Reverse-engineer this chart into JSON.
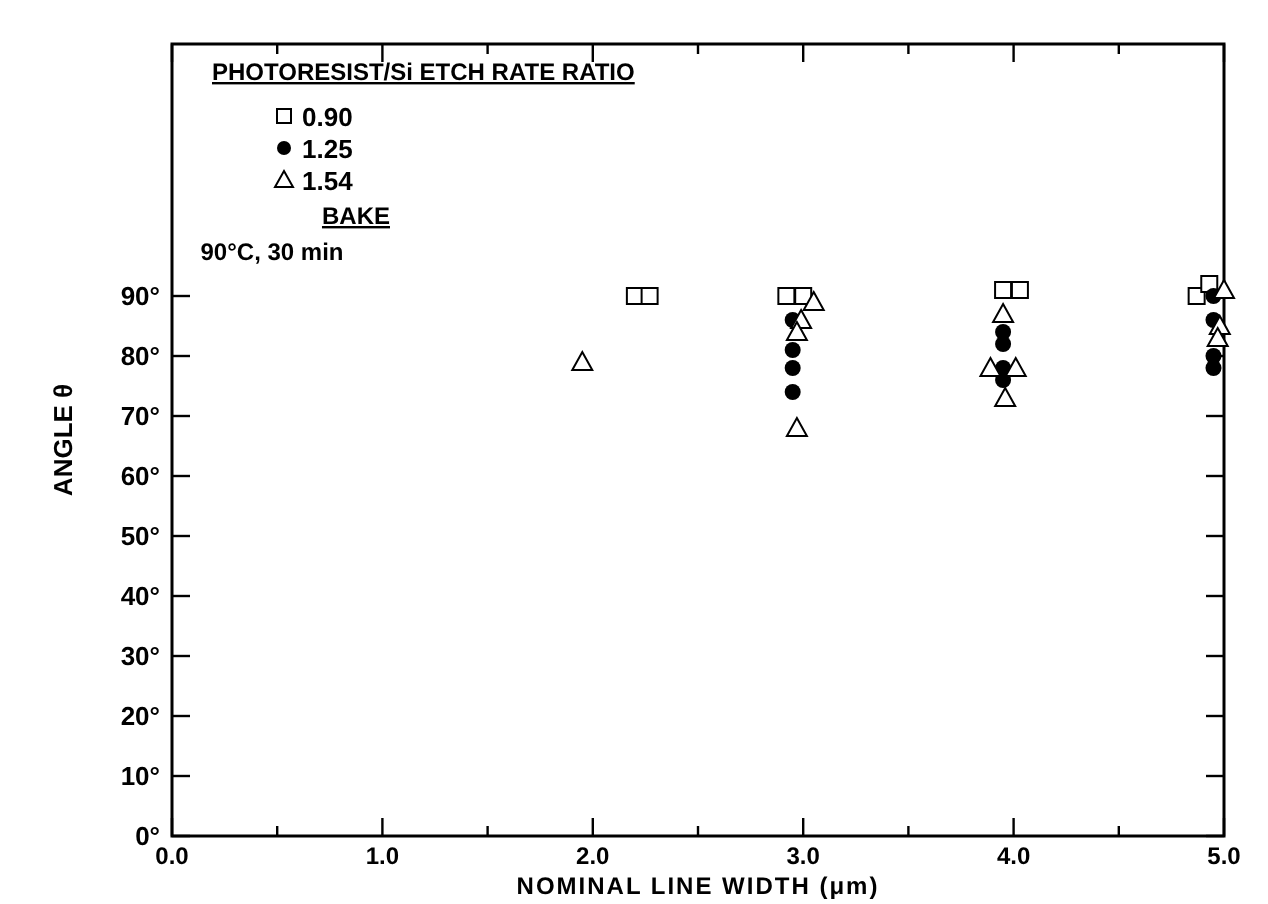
{
  "chart_data": {
    "type": "scatter",
    "xlabel": "NOMINAL LINE WIDTH (μm)",
    "ylabel": "ANGLE θ",
    "legend_title": "PHOTORESIST/Si ETCH RATE RATIO",
    "legend": "top left",
    "annotations": [
      "BAKE",
      "90°C, 30 min"
    ],
    "xlim": [
      0,
      5
    ],
    "ylim": [
      0,
      132
    ],
    "xticks": [
      {
        "value": 0,
        "label": "0.0"
      },
      {
        "value": 0.5,
        "label": null
      },
      {
        "value": 1,
        "label": "1.0"
      },
      {
        "value": 1.5,
        "label": null
      },
      {
        "value": 2,
        "label": "2.0"
      },
      {
        "value": 2.5,
        "label": null
      },
      {
        "value": 3,
        "label": "3.0"
      },
      {
        "value": 3.5,
        "label": null
      },
      {
        "value": 4,
        "label": "4.0"
      },
      {
        "value": 4.5,
        "label": null
      },
      {
        "value": 5,
        "label": "5.0"
      }
    ],
    "yticks": [
      {
        "value": 0,
        "label": "0°"
      },
      {
        "value": 10,
        "label": "10°"
      },
      {
        "value": 20,
        "label": "20°"
      },
      {
        "value": 30,
        "label": "30°"
      },
      {
        "value": 40,
        "label": "40°"
      },
      {
        "value": 50,
        "label": "50°"
      },
      {
        "value": 60,
        "label": "60°"
      },
      {
        "value": 70,
        "label": "70°"
      },
      {
        "value": 80,
        "label": "80°"
      },
      {
        "value": 90,
        "label": "90°"
      }
    ],
    "grid": false,
    "series": [
      {
        "name": "0.90",
        "color": "#000000",
        "marker": "square",
        "x": [
          2.2,
          2.27,
          2.92,
          3.0,
          3.95,
          4.03,
          4.87,
          4.93
        ],
        "values": [
          90,
          90,
          90,
          90,
          91,
          91,
          90,
          92
        ]
      },
      {
        "name": "1.25",
        "color": "#000000",
        "marker": "circle",
        "x": [
          2.95,
          2.95,
          2.95,
          2.95,
          3.95,
          3.95,
          3.95,
          3.95,
          4.95,
          4.95,
          4.95,
          4.95
        ],
        "values": [
          86,
          81,
          78,
          74,
          84,
          82,
          78,
          76,
          90,
          86,
          80,
          78
        ]
      },
      {
        "name": "1.54",
        "color": "#000000",
        "marker": "triangle",
        "x": [
          1.95,
          3.05,
          2.99,
          2.97,
          2.97,
          3.95,
          3.89,
          4.01,
          3.96,
          5.0,
          4.98,
          4.97
        ],
        "values": [
          79,
          89,
          86,
          84,
          68,
          87,
          78,
          78,
          73,
          91,
          85,
          83
        ]
      }
    ]
  }
}
